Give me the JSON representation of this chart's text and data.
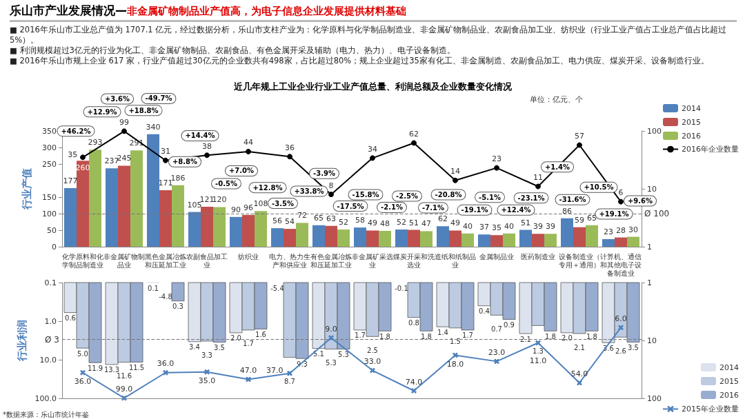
{
  "chart_data": [
    {
      "type": "bar",
      "title": "近几年规上工业企业行业工业产值总量、利润总额及企业数量变化情况",
      "subtitle": "单位：亿元、个",
      "ylabel": "行业产值",
      "categories": [
        "化学原料和化学制品制造业",
        "非金属矿物制品业",
        "黑色金属冶炼和压延加工业",
        "农副食品加工业",
        "纺织业",
        "电力、热力生产和供应业",
        "有色金属冶炼和压延加工业",
        "非金属矿采选业",
        "煤炭开采和洗选业",
        "造纸和纸制品业",
        "金属制品业",
        "医药制造业",
        "设备制造业（专用＋通用）",
        "计算机、通信和其他电子设备制造业"
      ],
      "series": [
        {
          "name": "2014",
          "color": "#4f81bd",
          "values": [
            177,
            237,
            340,
            105,
            90,
            56,
            65,
            58,
            52,
            62,
            37,
            51,
            86,
            23
          ]
        },
        {
          "name": "2015",
          "color": "#c0504d",
          "values": [
            260,
            245,
            171,
            121,
            96,
            54,
            63,
            49,
            51,
            49,
            35,
            39,
            59,
            28
          ]
        },
        {
          "name": "2016",
          "color": "#9bbb59",
          "values": [
            293,
            291,
            186,
            120,
            108,
            72,
            52,
            48,
            47,
            40,
            40,
            39,
            65,
            30
          ]
        },
        {
          "name": "2016年企业数量",
          "type": "line",
          "axis": "y2",
          "color": "#000000",
          "marker": "circle",
          "values": [
            35,
            99,
            31,
            38,
            44,
            36,
            8,
            34,
            62,
            14,
            23,
            11,
            57,
            6
          ]
        }
      ],
      "ylim": [
        0,
        350
      ],
      "yticks": [
        0,
        50,
        100,
        150,
        250,
        300,
        350
      ],
      "y2lim": [
        1,
        100
      ],
      "y2ticks": [
        1,
        10,
        100
      ],
      "log": "y2",
      "data_labels": true,
      "legend": "top right",
      "ref_lines": [
        {
          "axis": "y",
          "value": 100,
          "label": "Ø 100",
          "line_style": "dashed"
        }
      ],
      "annotations": [
        "乐山市产业发展情况—",
        "非金属矿物制品业产值高，为电子信息企业发展提供材料基础",
        "■ 2016年乐山市工业总产值为 1707.1 亿元，经过数据分析，乐山市支柱产业为：化学原料与化学制品制造业、非金属矿物制品业、农副食品加工业、纺织业（行业工业产值占工业总产值占比超过5%）。",
        "■ 利润规模超过3亿元的行业为化工、非金属矿物制品、农副食品、有色金属开采及辅助（电力、热力）、电子设备制造。",
        "■ 2016年乐山市规上企业 617 家，行业产值超过30亿元的企业数共有498家，占比超过80%；规上企业超过35家有化工、非金属制造、农副食品加工、电力供应、煤炭开采、设备制造行业。",
        "+46.2%",
        "+12.9%",
        "+3.6%",
        "+18.8%",
        "-49.7%",
        "+8.8%",
        "+14.4%",
        "-0.5%",
        "+7.0%",
        "+12.8%",
        "-3.5%",
        "+33.8%",
        "-3.9%",
        "-17.5%",
        "-15.8%",
        "-2.1%",
        "-2.5%",
        "-7.1%",
        "-20.8%",
        "-19.1%",
        "-5.1%",
        "+12.4%",
        "-23.1%",
        "+1.4%",
        "-31.6%",
        "+10.5%",
        "+19.1%",
        "+9.6%"
      ]
    },
    {
      "type": "bar",
      "ylabel": "行业利润",
      "categories": [
        "化学原料和化学制品制造业",
        "非金属矿物制品业",
        "黑色金属冶炼和压延加工业",
        "农副食品加工业",
        "纺织业",
        "电力、热力生产和供应业",
        "有色金属冶炼和压延加工业",
        "非金属矿采选业",
        "煤炭开采和洗选业",
        "造纸和纸制品业",
        "金属制品业",
        "医药制造业",
        "设备制造业（专用＋通用）",
        "计算机、通信和其他电子设备制造业"
      ],
      "series": [
        {
          "name": "2014",
          "color": "#dce3ef",
          "values": [
            0.6,
            13.3,
            0.1,
            3.4,
            2,
            null,
            5.1,
            1.7,
            null,
            1.4,
            0.4,
            2.1,
            2,
            3.6
          ],
          "value_labels": [
            "0.6",
            "13.3",
            "0.1",
            "3.4",
            "2.0",
            "-5.4",
            "5.1",
            "1.7",
            "-0.1",
            "1.4",
            "0.4",
            "2.1",
            "2.0",
            "3.6"
          ]
        },
        {
          "name": "2015",
          "color": "#bccbe2",
          "values": [
            5,
            11.6,
            null,
            3.3,
            1.7,
            8.7,
            5.3,
            2.5,
            0.8,
            1.5,
            0.7,
            1.3,
            2.1,
            2.6
          ],
          "value_labels": [
            "5.0",
            "11.6",
            "-4.8",
            "3.3",
            "1.7",
            "8.7",
            "5.3",
            "2.5",
            "0.8",
            "1.5",
            "0.7",
            "1.3",
            "2.1",
            "2.6"
          ]
        },
        {
          "name": "2016",
          "color": "#98acd0",
          "values": [
            11.9,
            11.5,
            0.3,
            3.5,
            1.6,
            9.3,
            5.3,
            1.8,
            1.8,
            1.7,
            0.9,
            1.8,
            1.8,
            3.5
          ],
          "value_labels": [
            "11.9",
            "11.5",
            "0.3",
            "3.5",
            "1.6",
            "9.3",
            "5.3",
            "1.8",
            "1.8",
            "1.7",
            "0.9",
            "1.8",
            "1.8",
            "3.5"
          ]
        }
      ],
      "ylim": [
        100,
        0.1
      ],
      "yticks": [
        0.1,
        {
          "value": 1,
          "label": "1.0"
        },
        {
          "value": 10,
          "label": "10.0"
        },
        {
          "value": 100,
          "label": "100.0"
        }
      ],
      "log": true,
      "tick_labels": "y",
      "legend": "bottom right",
      "ref_lines": [
        {
          "axis": "y",
          "value": 3,
          "label": "Ø 3",
          "line_style": "dashed"
        }
      ],
      "annotations": [
        "*数据来源：乐山市统计年鉴"
      ]
    },
    {
      "type": "line",
      "categories": [
        "化学原料和化学制品制造业",
        "非金属矿物制品业",
        "黑色金属冶炼和压延加工业",
        "农副食品加工业",
        "纺织业",
        "电力、热力生产和供应业",
        "有色金属冶炼和压延加工业",
        "非金属矿采选业",
        "煤炭开采和洗选业",
        "造纸和纸制品业",
        "金属制品业",
        "医药制造业",
        "设备制造业（专用＋通用）",
        "计算机、通信和其他电子设备制造业"
      ],
      "series": [
        {
          "name": "2015年企业数量",
          "axis": "y2",
          "color": "#4f81bd",
          "marker": "cross",
          "values": [
            36,
            99,
            36,
            35,
            47,
            37,
            9,
            33,
            74,
            18,
            23,
            11,
            54,
            6
          ],
          "value_labels": [
            "36.0",
            "99.0",
            "36.0",
            "35.0",
            "47.0",
            "37.0",
            "9.0",
            "33.0",
            "74.0",
            "18.0",
            "23.0",
            "11.0",
            "54.0",
            "6.0"
          ]
        }
      ],
      "y2lim": [
        100,
        1
      ],
      "y2ticks": [
        1,
        10,
        100
      ],
      "log": "y2",
      "tick_labels": "y",
      "legend": "bottom right"
    }
  ]
}
